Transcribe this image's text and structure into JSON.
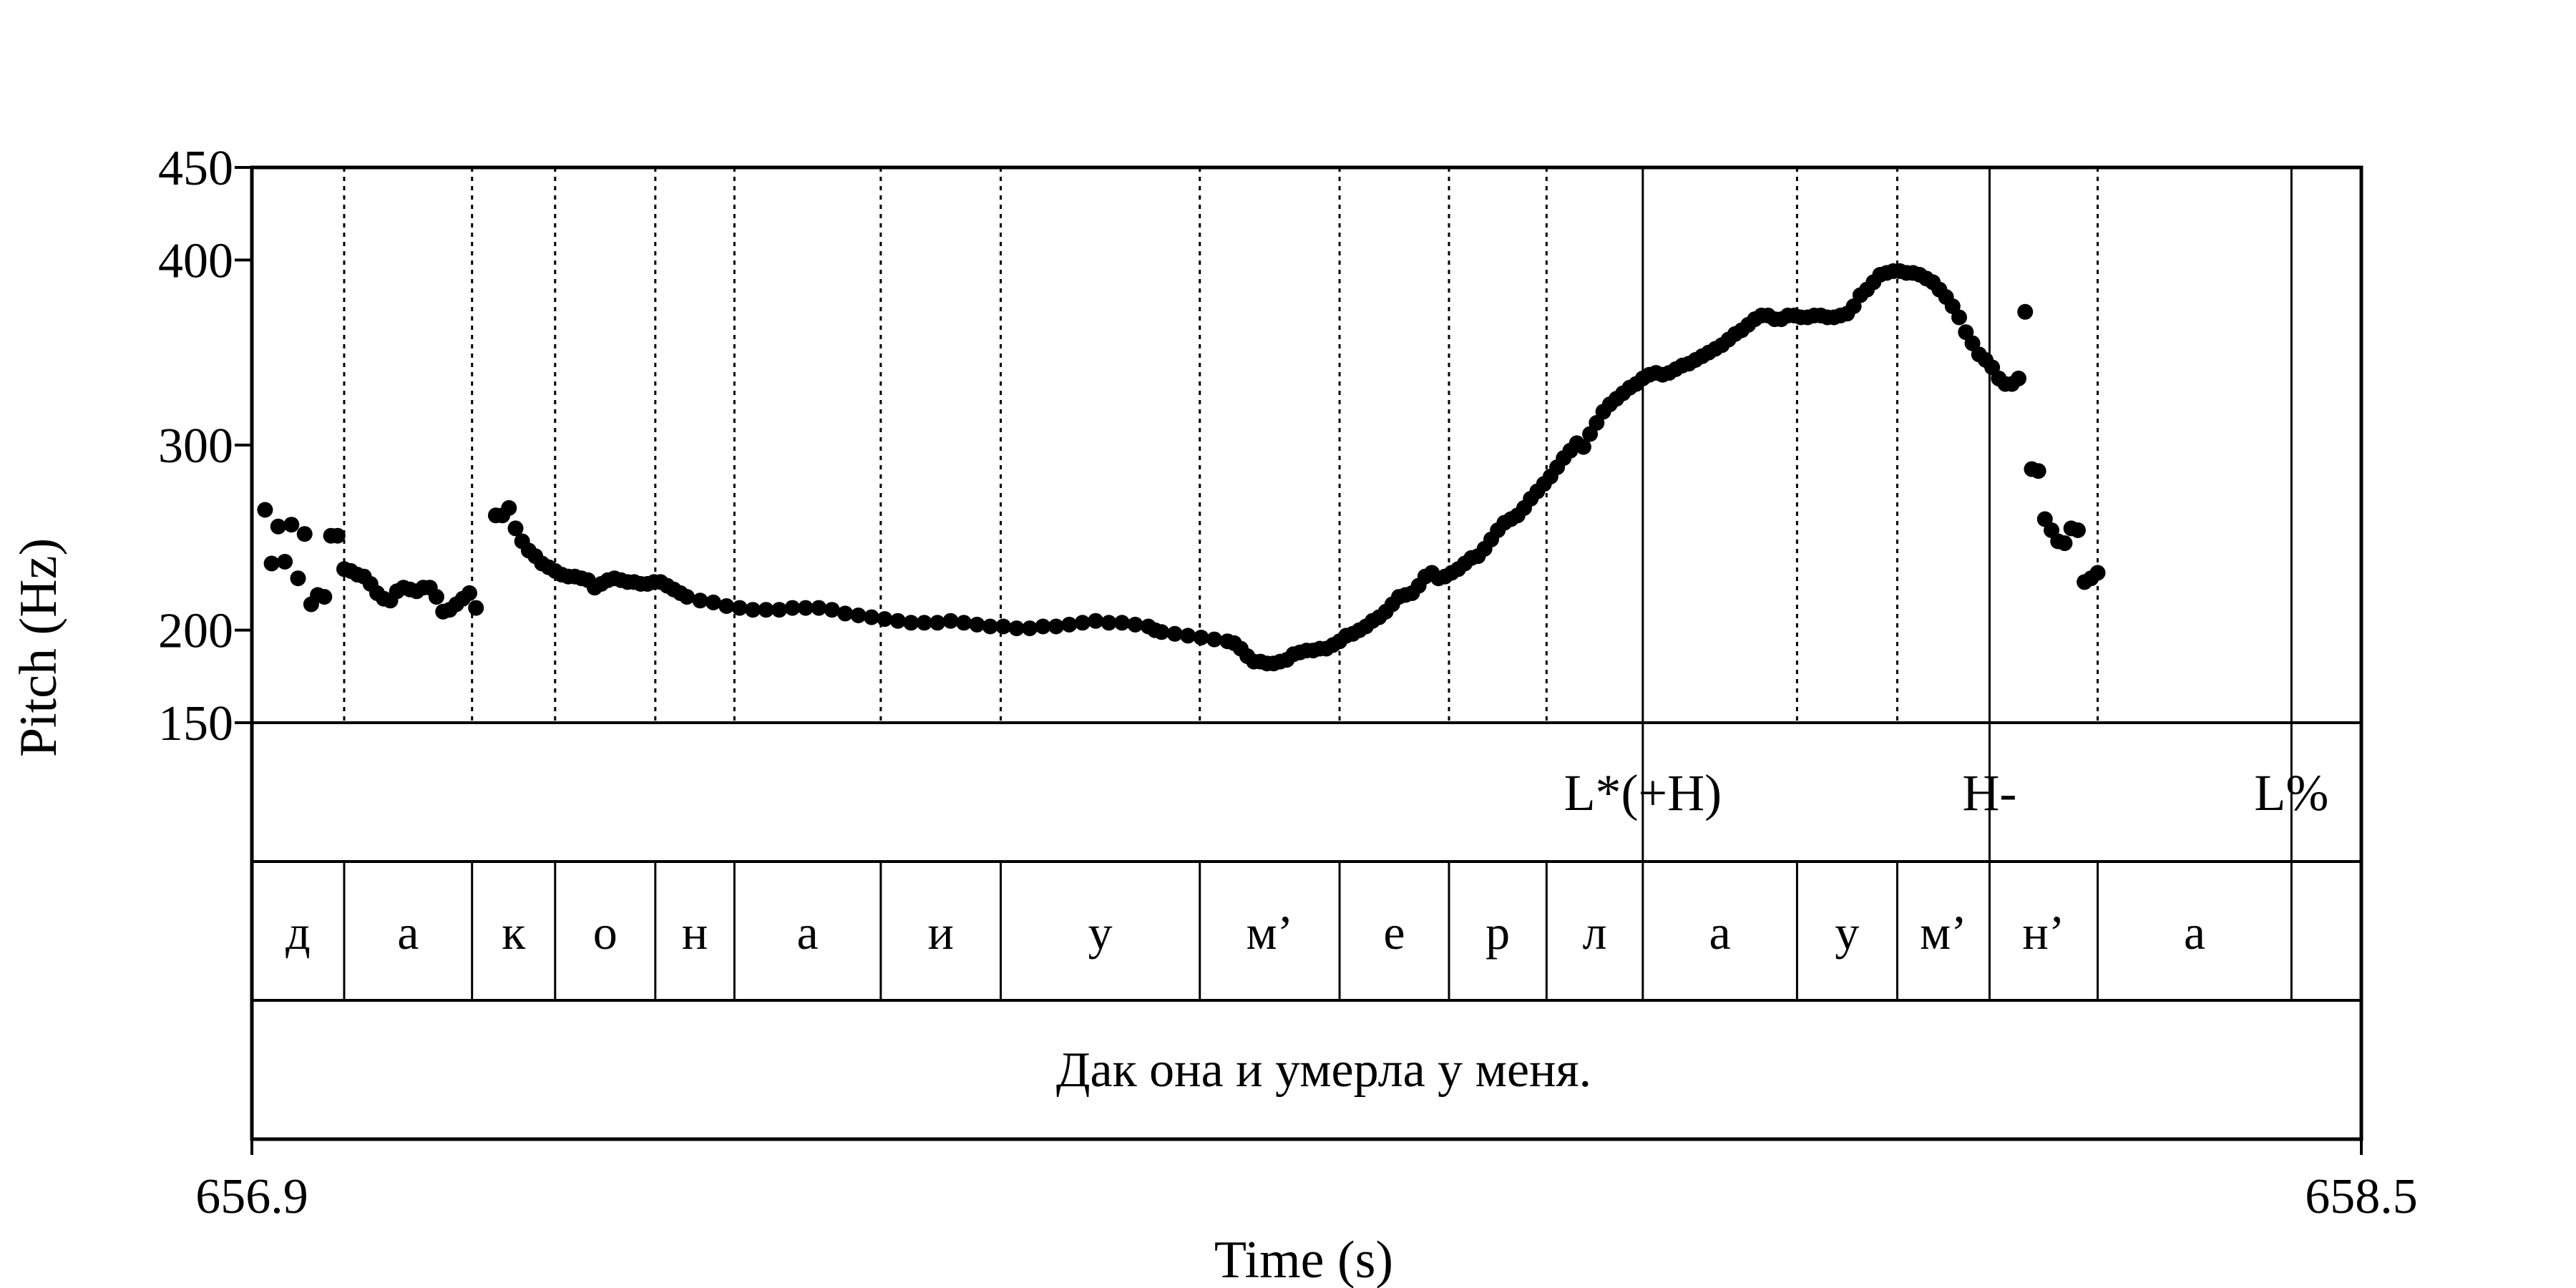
{
  "chart_data": {
    "type": "scatter",
    "xlabel": "Time (s)",
    "ylabel": "Pitch (Hz)",
    "xlim": [
      656.9,
      658.5
    ],
    "ylim": [
      150,
      450
    ],
    "x_tick_labels": [
      "656.9",
      "658.5"
    ],
    "y_ticks": [
      150,
      200,
      300,
      400,
      450
    ],
    "y_tick_labels": [
      "150",
      "200",
      "300",
      "400",
      "450"
    ],
    "marker_color": "#000000",
    "grid": false,
    "pitch_contour": [
      [
        656.91,
        265
      ],
      [
        656.915,
        236
      ],
      [
        656.92,
        256
      ],
      [
        656.925,
        237
      ],
      [
        656.93,
        257
      ],
      [
        656.935,
        228
      ],
      [
        656.94,
        252
      ],
      [
        656.945,
        214
      ],
      [
        656.95,
        219
      ],
      [
        656.955,
        218
      ],
      [
        656.96,
        251
      ],
      [
        656.965,
        251
      ],
      [
        656.97,
        233
      ],
      [
        656.975,
        232
      ],
      [
        656.98,
        230
      ],
      [
        656.985,
        229
      ],
      [
        656.99,
        225
      ],
      [
        656.995,
        220
      ],
      [
        657.0,
        217
      ],
      [
        657.005,
        216
      ],
      [
        657.01,
        221
      ],
      [
        657.015,
        223
      ],
      [
        657.02,
        222
      ],
      [
        657.025,
        221
      ],
      [
        657.03,
        223
      ],
      [
        657.035,
        223
      ],
      [
        657.04,
        218
      ],
      [
        657.045,
        210
      ],
      [
        657.05,
        211
      ],
      [
        657.055,
        214
      ],
      [
        657.06,
        217
      ],
      [
        657.065,
        220
      ],
      [
        657.07,
        212
      ],
      [
        657.085,
        262
      ],
      [
        657.09,
        262
      ],
      [
        657.095,
        266
      ],
      [
        657.1,
        255
      ],
      [
        657.105,
        248
      ],
      [
        657.11,
        243
      ],
      [
        657.115,
        240
      ],
      [
        657.12,
        236
      ],
      [
        657.125,
        234
      ],
      [
        657.13,
        232
      ],
      [
        657.135,
        230
      ],
      [
        657.14,
        229
      ],
      [
        657.145,
        229
      ],
      [
        657.15,
        228
      ],
      [
        657.155,
        227
      ],
      [
        657.16,
        223
      ],
      [
        657.165,
        225
      ],
      [
        657.17,
        227
      ],
      [
        657.175,
        228
      ],
      [
        657.18,
        227
      ],
      [
        657.185,
        226
      ],
      [
        657.19,
        226
      ],
      [
        657.195,
        225
      ],
      [
        657.2,
        225
      ],
      [
        657.205,
        226
      ],
      [
        657.21,
        226
      ],
      [
        657.215,
        224
      ],
      [
        657.22,
        222
      ],
      [
        657.225,
        220
      ],
      [
        657.23,
        218
      ],
      [
        657.24,
        216
      ],
      [
        657.25,
        215
      ],
      [
        657.26,
        213
      ],
      [
        657.27,
        212
      ],
      [
        657.28,
        211
      ],
      [
        657.29,
        211
      ],
      [
        657.3,
        211
      ],
      [
        657.31,
        212
      ],
      [
        657.32,
        212
      ],
      [
        657.33,
        212
      ],
      [
        657.34,
        211
      ],
      [
        657.35,
        209
      ],
      [
        657.36,
        208
      ],
      [
        657.37,
        207
      ],
      [
        657.38,
        206
      ],
      [
        657.39,
        205
      ],
      [
        657.4,
        204
      ],
      [
        657.41,
        204
      ],
      [
        657.42,
        204
      ],
      [
        657.43,
        205
      ],
      [
        657.44,
        204
      ],
      [
        657.45,
        203
      ],
      [
        657.46,
        202
      ],
      [
        657.47,
        202
      ],
      [
        657.48,
        201
      ],
      [
        657.49,
        201
      ],
      [
        657.5,
        202
      ],
      [
        657.51,
        202
      ],
      [
        657.52,
        203
      ],
      [
        657.53,
        204
      ],
      [
        657.54,
        205
      ],
      [
        657.55,
        204
      ],
      [
        657.56,
        204
      ],
      [
        657.57,
        203
      ],
      [
        657.58,
        202
      ],
      [
        657.585,
        200
      ],
      [
        657.59,
        199
      ],
      [
        657.6,
        198
      ],
      [
        657.61,
        197
      ],
      [
        657.62,
        196
      ],
      [
        657.63,
        195
      ],
      [
        657.64,
        194
      ],
      [
        657.645,
        193
      ],
      [
        657.65,
        190
      ],
      [
        657.655,
        186
      ],
      [
        657.66,
        183
      ],
      [
        657.665,
        183
      ],
      [
        657.67,
        182
      ],
      [
        657.675,
        182
      ],
      [
        657.68,
        183
      ],
      [
        657.685,
        184
      ],
      [
        657.69,
        187
      ],
      [
        657.695,
        188
      ],
      [
        657.7,
        189
      ],
      [
        657.705,
        189
      ],
      [
        657.71,
        190
      ],
      [
        657.715,
        190
      ],
      [
        657.72,
        192
      ],
      [
        657.725,
        194
      ],
      [
        657.73,
        197
      ],
      [
        657.735,
        198
      ],
      [
        657.74,
        200
      ],
      [
        657.745,
        202
      ],
      [
        657.75,
        205
      ],
      [
        657.755,
        207
      ],
      [
        657.76,
        210
      ],
      [
        657.765,
        214
      ],
      [
        657.77,
        218
      ],
      [
        657.775,
        219
      ],
      [
        657.78,
        220
      ],
      [
        657.785,
        224
      ],
      [
        657.79,
        229
      ],
      [
        657.795,
        231
      ],
      [
        657.8,
        228
      ],
      [
        657.805,
        229
      ],
      [
        657.81,
        231
      ],
      [
        657.815,
        233
      ],
      [
        657.82,
        236
      ],
      [
        657.825,
        239
      ],
      [
        657.83,
        240
      ],
      [
        657.835,
        244
      ],
      [
        657.84,
        249
      ],
      [
        657.845,
        254
      ],
      [
        657.85,
        258
      ],
      [
        657.855,
        260
      ],
      [
        657.86,
        262
      ],
      [
        657.865,
        266
      ],
      [
        657.87,
        271
      ],
      [
        657.875,
        275
      ],
      [
        657.88,
        279
      ],
      [
        657.885,
        283
      ],
      [
        657.89,
        288
      ],
      [
        657.895,
        293
      ],
      [
        657.9,
        297
      ],
      [
        657.905,
        301
      ],
      [
        657.91,
        299
      ],
      [
        657.915,
        306
      ],
      [
        657.92,
        312
      ],
      [
        657.925,
        318
      ],
      [
        657.93,
        322
      ],
      [
        657.935,
        325
      ],
      [
        657.94,
        328
      ],
      [
        657.945,
        331
      ],
      [
        657.95,
        333
      ],
      [
        657.955,
        336
      ],
      [
        657.96,
        338
      ],
      [
        657.965,
        339
      ],
      [
        657.97,
        338
      ],
      [
        657.975,
        339
      ],
      [
        657.98,
        341
      ],
      [
        657.985,
        343
      ],
      [
        657.99,
        344
      ],
      [
        657.995,
        346
      ],
      [
        658.0,
        348
      ],
      [
        658.005,
        350
      ],
      [
        658.01,
        352
      ],
      [
        658.015,
        354
      ],
      [
        658.02,
        357
      ],
      [
        658.025,
        360
      ],
      [
        658.03,
        362
      ],
      [
        658.035,
        365
      ],
      [
        658.04,
        368
      ],
      [
        658.045,
        370
      ],
      [
        658.05,
        370
      ],
      [
        658.055,
        368
      ],
      [
        658.06,
        368
      ],
      [
        658.065,
        370
      ],
      [
        658.07,
        370
      ],
      [
        658.075,
        369
      ],
      [
        658.08,
        369
      ],
      [
        658.085,
        370
      ],
      [
        658.09,
        370
      ],
      [
        658.095,
        369
      ],
      [
        658.1,
        369
      ],
      [
        658.105,
        370
      ],
      [
        658.11,
        371
      ],
      [
        658.115,
        375
      ],
      [
        658.12,
        381
      ],
      [
        658.125,
        384
      ],
      [
        658.13,
        388
      ],
      [
        658.135,
        392
      ],
      [
        658.14,
        393
      ],
      [
        658.145,
        394
      ],
      [
        658.15,
        394
      ],
      [
        658.155,
        393
      ],
      [
        658.16,
        393
      ],
      [
        658.165,
        392
      ],
      [
        658.17,
        390
      ],
      [
        658.175,
        388
      ],
      [
        658.18,
        384
      ],
      [
        658.185,
        380
      ],
      [
        658.19,
        375
      ],
      [
        658.195,
        369
      ],
      [
        658.2,
        361
      ],
      [
        658.205,
        355
      ],
      [
        658.21,
        349
      ],
      [
        658.215,
        346
      ],
      [
        658.22,
        342
      ],
      [
        658.225,
        336
      ],
      [
        658.23,
        333
      ],
      [
        658.235,
        333
      ],
      [
        658.24,
        336
      ],
      [
        658.245,
        372
      ],
      [
        658.25,
        287
      ],
      [
        658.255,
        286
      ],
      [
        658.26,
        260
      ],
      [
        658.265,
        254
      ],
      [
        658.27,
        248
      ],
      [
        658.275,
        247
      ],
      [
        658.28,
        255
      ],
      [
        658.285,
        254
      ],
      [
        658.29,
        226
      ],
      [
        658.295,
        228
      ],
      [
        658.3,
        231
      ]
    ]
  },
  "tone_tier": {
    "boundaries": [
      657.955,
      658.218,
      658.447
    ],
    "labels": [
      {
        "text": "L*(+H)",
        "t": 657.955
      },
      {
        "text": "H-",
        "t": 658.218
      },
      {
        "text": "L%",
        "t": 658.447
      }
    ]
  },
  "segment_tier": {
    "segments": [
      {
        "label": "д",
        "start": 656.9,
        "end": 656.97
      },
      {
        "label": "а",
        "start": 656.97,
        "end": 657.067
      },
      {
        "label": "к",
        "start": 657.067,
        "end": 657.13
      },
      {
        "label": "о",
        "start": 657.13,
        "end": 657.206
      },
      {
        "label": "н",
        "start": 657.206,
        "end": 657.266
      },
      {
        "label": "а",
        "start": 657.266,
        "end": 657.377
      },
      {
        "label": "и",
        "start": 657.377,
        "end": 657.468
      },
      {
        "label": "у",
        "start": 657.468,
        "end": 657.619
      },
      {
        "label": "м’",
        "start": 657.619,
        "end": 657.725
      },
      {
        "label": "е",
        "start": 657.725,
        "end": 657.808
      },
      {
        "label": "р",
        "start": 657.808,
        "end": 657.882
      },
      {
        "label": "л",
        "start": 657.882,
        "end": 657.955
      },
      {
        "label": "а",
        "start": 657.955,
        "end": 658.072
      },
      {
        "label": "у",
        "start": 658.072,
        "end": 658.148
      },
      {
        "label": "м’",
        "start": 658.148,
        "end": 658.218
      },
      {
        "label": "н’",
        "start": 658.218,
        "end": 658.3
      },
      {
        "label": "а",
        "start": 658.3,
        "end": 658.447
      },
      {
        "label": "",
        "start": 658.447,
        "end": 658.5
      }
    ]
  },
  "sentence_tier": {
    "text": "Дак она и умерла у меня."
  }
}
